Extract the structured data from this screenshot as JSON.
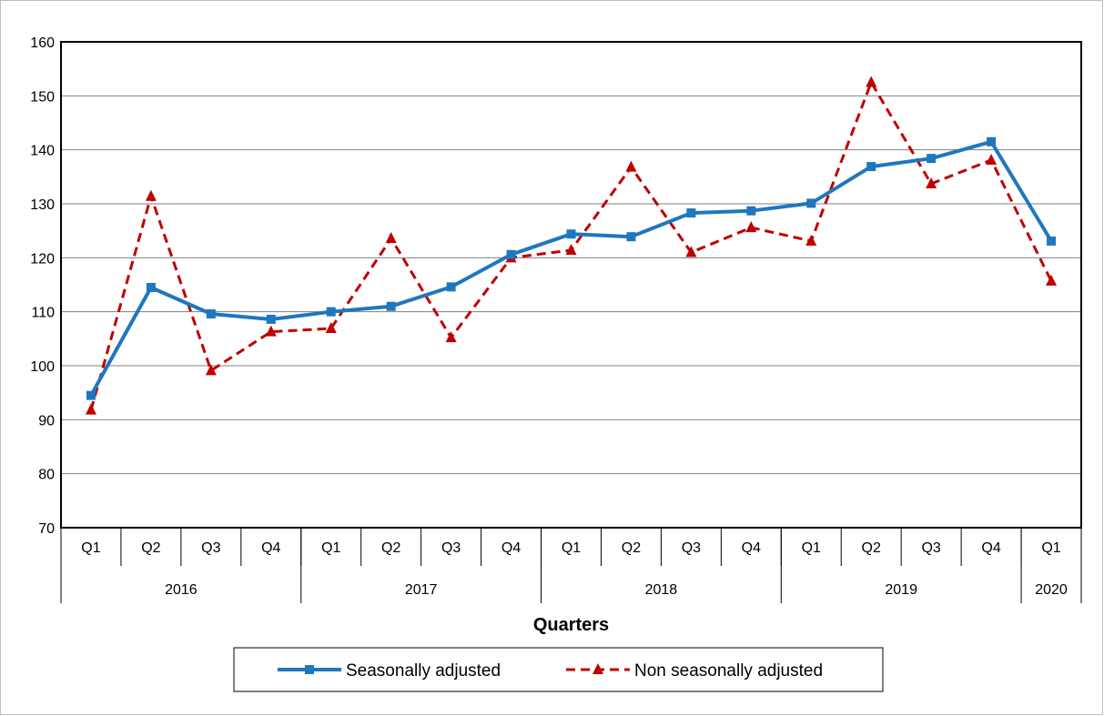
{
  "chart_data": {
    "type": "line",
    "xlabel": "Quarters",
    "ylabel": "",
    "ylim": [
      70,
      160
    ],
    "yticks": [
      70,
      80,
      90,
      100,
      110,
      120,
      130,
      140,
      150,
      160
    ],
    "grid": "horizontal",
    "legend_position": "bottom",
    "categories": [
      "Q1",
      "Q2",
      "Q3",
      "Q4",
      "Q1",
      "Q2",
      "Q3",
      "Q4",
      "Q1",
      "Q2",
      "Q3",
      "Q4",
      "Q1",
      "Q2",
      "Q3",
      "Q4",
      "Q1"
    ],
    "years": [
      {
        "label": "2016",
        "quarters": 4
      },
      {
        "label": "2017",
        "quarters": 4
      },
      {
        "label": "2018",
        "quarters": 4
      },
      {
        "label": "2019",
        "quarters": 4
      },
      {
        "label": "2020",
        "quarters": 1
      }
    ],
    "series": [
      {
        "name": "Seasonally adjusted",
        "color": "#1f77bd",
        "line_style": "solid",
        "marker": "square",
        "values": [
          94.5,
          114.5,
          109.6,
          108.6,
          110.0,
          111.0,
          114.6,
          120.6,
          124.4,
          123.9,
          128.3,
          128.7,
          130.1,
          136.9,
          138.4,
          141.5,
          123.1
        ]
      },
      {
        "name": "Non seasonally adjusted",
        "color": "#c00000",
        "line_style": "dashed",
        "marker": "triangle",
        "values": [
          91.8,
          131.4,
          99.1,
          106.3,
          106.9,
          123.6,
          105.2,
          120.0,
          121.4,
          136.8,
          121.0,
          125.6,
          123.1,
          152.5,
          133.7,
          138.1,
          115.7
        ]
      }
    ]
  }
}
